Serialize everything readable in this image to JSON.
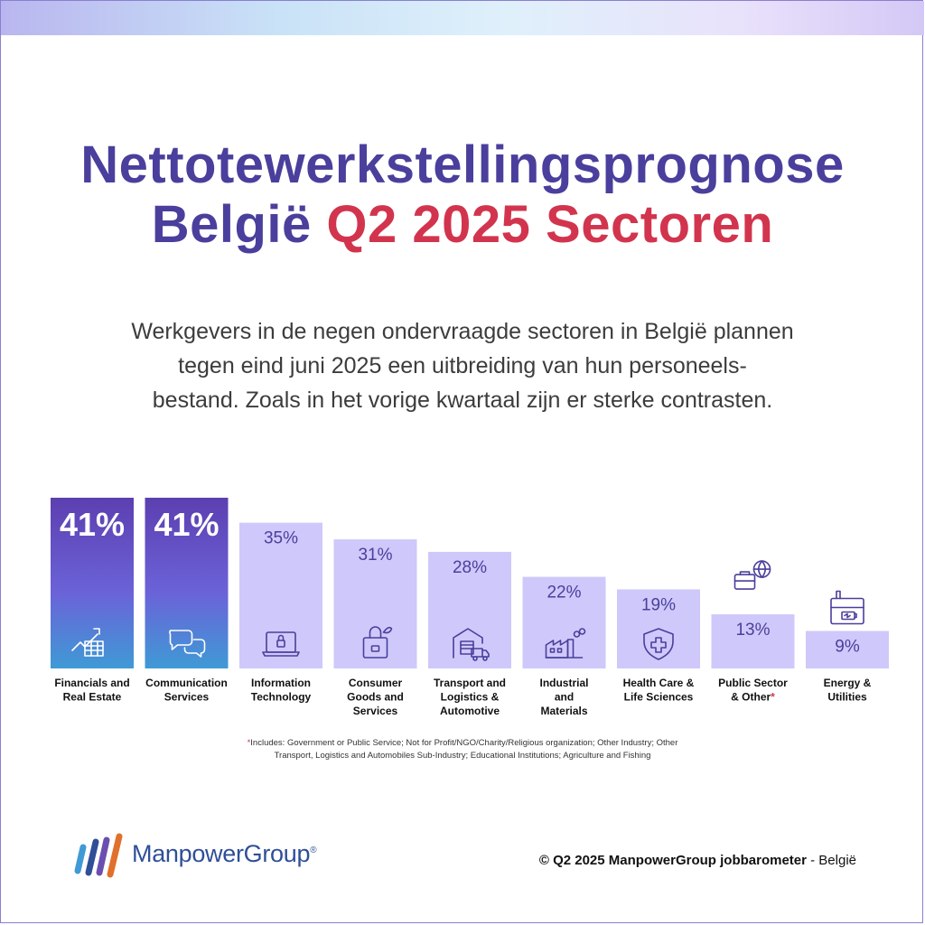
{
  "header": {
    "title_line1": "Nettotewerkstellingsprognose",
    "title_line2_main": "België",
    "title_line2_accent": "Q2 2025 Sectoren"
  },
  "intro": {
    "line1": "Werkgevers in de negen ondervraagde sectoren in België plannen",
    "line2": "tegen eind juni 2025 een uitbreiding van hun personeels-",
    "line3": "bestand. Zoals in het vorige kwartaal zijn er sterke contrasten."
  },
  "chart_data": {
    "type": "bar",
    "categories": [
      "Financials and Real Estate",
      "Communication Services",
      "Information Technology",
      "Consumer Goods and Services",
      "Transport and Logistics & Automotive",
      "Industrial and Materials",
      "Health Care & Life Sciences",
      "Public Sector & Other*",
      "Energy & Utilities"
    ],
    "category_lines": [
      [
        "Financials and",
        "Real Estate"
      ],
      [
        "Communication",
        "Services"
      ],
      [
        "Information",
        "Technology"
      ],
      [
        "Consumer",
        "Goods and",
        "Services"
      ],
      [
        "Transport and",
        "Logistics &",
        "Automotive"
      ],
      [
        "Industrial",
        "and",
        "Materials"
      ],
      [
        "Health Care &",
        "Life Sciences"
      ],
      [
        "Public Sector",
        "& Other"
      ],
      [
        "Energy &",
        "Utilities"
      ]
    ],
    "values": [
      41,
      41,
      35,
      31,
      28,
      22,
      19,
      13,
      9
    ],
    "value_labels": [
      "41%",
      "41%",
      "35%",
      "31%",
      "28%",
      "22%",
      "19%",
      "13%",
      "9%"
    ],
    "highlighted": [
      true,
      true,
      false,
      false,
      false,
      false,
      false,
      false,
      false
    ],
    "icons": [
      "chart-grid-icon",
      "chat-bubbles-icon",
      "laptop-lock-icon",
      "shopping-bag-icon",
      "warehouse-truck-icon",
      "factory-icon",
      "shield-cross-icon",
      "briefcase-globe-icon",
      "factory-battery-icon"
    ],
    "ylim": [
      0,
      41
    ],
    "colors": {
      "highlight_top": "#5c3fb0",
      "highlight_mid": "#6b62d8",
      "highlight_bottom": "#3f9ad6",
      "bar_light": "#cec9fa",
      "label_dark": "#4a3f9c",
      "asterisk": "#d2344e"
    }
  },
  "footnote": {
    "asterisk": "*",
    "line1": "Includes: Government or Public Service; Not for Profit/NGO/Charity/Religious organization; Other Industry; Other",
    "line2": "Transport, Logistics and Automobiles Sub-Industry; Educational Institutions; Agriculture and Fishing"
  },
  "footer": {
    "logo_text": "ManpowerGroup",
    "logo_mark": "®",
    "copyright_bold": "© Q2 2025 ManpowerGroup jobbarometer",
    "copyright_rest": " - België"
  }
}
